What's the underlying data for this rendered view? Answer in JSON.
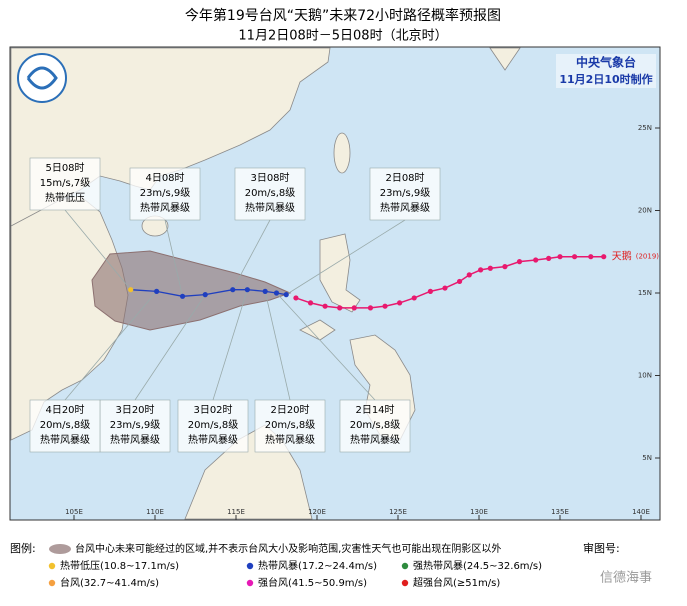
{
  "header": {
    "title": "今年第19号台风“天鹅”未来72小时路径概率预报图",
    "subtitle": "11月2日08时－5日08时（北京时）"
  },
  "agency": {
    "name": "中央气象台",
    "made": "11月2日10时制作"
  },
  "storm": {
    "name": "天鹅",
    "year_label": "(2019)"
  },
  "map": {
    "lonticks": [
      {
        "value": 105,
        "label": "105E"
      },
      {
        "value": 110,
        "label": "110E"
      },
      {
        "value": 115,
        "label": "115E"
      },
      {
        "value": 120,
        "label": "120E"
      },
      {
        "value": 125,
        "label": "125E"
      },
      {
        "value": 130,
        "label": "130E"
      },
      {
        "value": 135,
        "label": "135E"
      },
      {
        "value": 140,
        "label": "140E"
      }
    ],
    "latticks": [
      {
        "value": 25,
        "label": "25N"
      },
      {
        "value": 20,
        "label": "20N"
      },
      {
        "value": 15,
        "label": "15N"
      },
      {
        "value": 10,
        "label": "10N"
      },
      {
        "value": 5,
        "label": "5N"
      }
    ]
  },
  "observed_track": {
    "color": "#e8196e",
    "lon": [
      137.7,
      136.9,
      135.9,
      135.0,
      134.3,
      133.5,
      132.5,
      131.6,
      130.7,
      130.1,
      129.4,
      128.8,
      127.9,
      127.0,
      126.0,
      125.1,
      124.2,
      123.3,
      122.3,
      121.4,
      120.5,
      119.6,
      118.7
    ],
    "lat": [
      17.2,
      17.2,
      17.2,
      17.2,
      17.1,
      17.0,
      16.9,
      16.6,
      16.5,
      16.4,
      16.1,
      15.7,
      15.3,
      15.1,
      14.7,
      14.4,
      14.2,
      14.1,
      14.1,
      14.1,
      14.2,
      14.4,
      14.7
    ]
  },
  "forecast": {
    "color": "#1f3fbf",
    "points": [
      {
        "time": "2日08时",
        "wind": "23m/s,9级",
        "grade": "热带风暴级",
        "lon": 118.1,
        "lat": 14.9
      },
      {
        "time": "2日14时",
        "wind": "20m/s,8级",
        "grade": "热带风暴级",
        "lon": 117.5,
        "lat": 15.0
      },
      {
        "time": "2日20时",
        "wind": "20m/s,8级",
        "grade": "热带风暴级",
        "lon": 116.8,
        "lat": 15.1
      },
      {
        "time": "3日02时",
        "wind": "20m/s,8级",
        "grade": "热带风暴级",
        "lon": 115.7,
        "lat": 15.2
      },
      {
        "time": "3日08时",
        "wind": "20m/s,8级",
        "grade": "热带风暴级",
        "lon": 114.8,
        "lat": 15.2
      },
      {
        "time": "3日20时",
        "wind": "23m/s,9级",
        "grade": "热带风暴级",
        "lon": 113.1,
        "lat": 14.9
      },
      {
        "time": "4日08时",
        "wind": "23m/s,9级",
        "grade": "热带风暴级",
        "lon": 111.7,
        "lat": 14.8
      },
      {
        "time": "4日20时",
        "wind": "20m/s,8级",
        "grade": "热带风暴级",
        "lon": 110.1,
        "lat": 15.1
      },
      {
        "time": "5日08时",
        "wind": "15m/s,7级",
        "grade": "热带低压",
        "lon": 108.5,
        "lat": 15.2
      }
    ]
  },
  "legend": {
    "title": "图例:",
    "cone_note": "台风中心未来可能经过的区域,并不表示台风大小及影响范围,灾害性天气也可能出现在阴影区以外",
    "items": [
      {
        "label": "热带低压(10.8~17.1m/s)",
        "color": "#f2c12e"
      },
      {
        "label": "热带风暴(17.2~24.4m/s)",
        "color": "#1f3fbf"
      },
      {
        "label": "强热带风暴(24.5~32.6m/s)",
        "color": "#2e8b3e"
      },
      {
        "label": "台风(32.7~41.4m/s)",
        "color": "#f5a040"
      },
      {
        "label": "强台风(41.5~50.9m/s)",
        "color": "#e619b5"
      },
      {
        "label": "超强台风(≥51m/s)",
        "color": "#e01e1e"
      }
    ]
  },
  "footer": {
    "approval": "审图号:",
    "watermark": "信德海事"
  }
}
